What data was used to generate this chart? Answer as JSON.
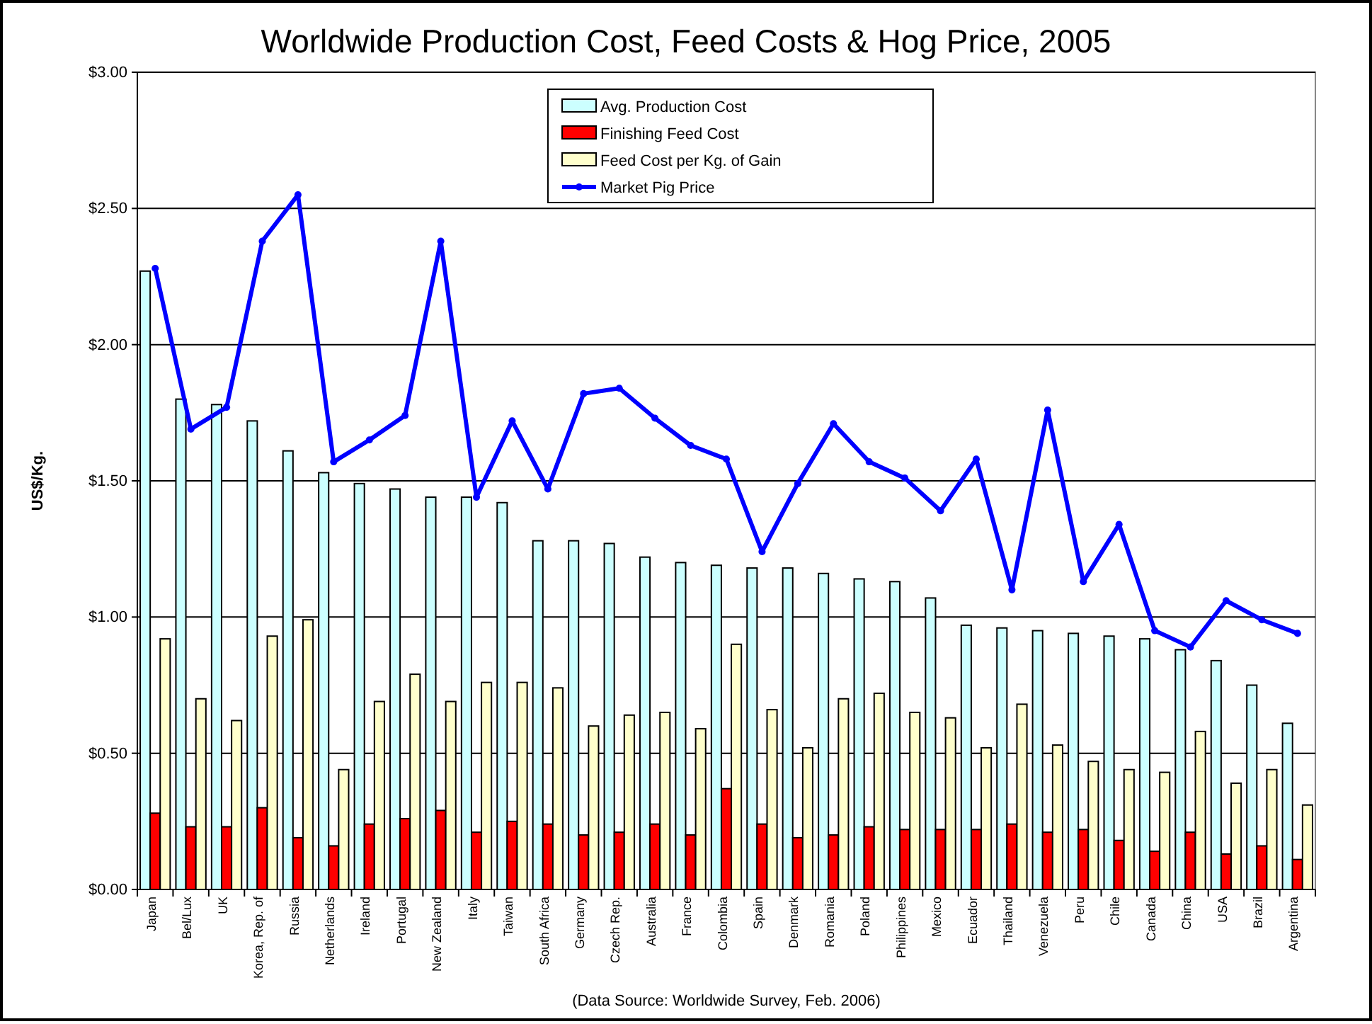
{
  "chart_data": {
    "type": "bar",
    "title": "Worldwide Production Cost, Feed Costs & Hog Price, 2005",
    "ylabel": "US$/Kg.",
    "categories": [
      "Japan",
      "Bel/Lux",
      "UK",
      "Korea, Rep. of",
      "Russia",
      "Netherlands",
      "Ireland",
      "Portugal",
      "New Zealand",
      "Italy",
      "Taiwan",
      "South Africa",
      "Germany",
      "Czech Rep.",
      "Australia",
      "France",
      "Colombia",
      "Spain",
      "Denmark",
      "Romania",
      "Poland",
      "Philippines",
      "Mexico",
      "Ecuador",
      "Thailand",
      "Venezuela",
      "Peru",
      "Chile",
      "Canada",
      "China",
      "USA",
      "Brazil",
      "Argentina"
    ],
    "series": [
      {
        "name": "Avg. Production Cost",
        "color": "#ccffff",
        "values": [
          2.27,
          1.8,
          1.78,
          1.72,
          1.61,
          1.53,
          1.49,
          1.47,
          1.44,
          1.44,
          1.42,
          1.28,
          1.28,
          1.27,
          1.22,
          1.2,
          1.19,
          1.18,
          1.18,
          1.16,
          1.14,
          1.13,
          1.07,
          0.97,
          0.96,
          0.95,
          0.94,
          0.93,
          0.92,
          0.88,
          0.84,
          0.75,
          0.61
        ]
      },
      {
        "name": "Finishing Feed Cost",
        "color": "#ff0000",
        "values": [
          0.28,
          0.23,
          0.23,
          0.3,
          0.19,
          0.16,
          0.24,
          0.26,
          0.29,
          0.21,
          0.25,
          0.24,
          0.2,
          0.21,
          0.24,
          0.2,
          0.37,
          0.24,
          0.19,
          0.2,
          0.23,
          0.22,
          0.22,
          0.22,
          0.24,
          0.21,
          0.22,
          0.18,
          0.14,
          0.21,
          0.13,
          0.16,
          0.11
        ]
      },
      {
        "name": "Feed Cost per Kg. of Gain",
        "color": "#ffffcc",
        "values": [
          0.92,
          0.7,
          0.62,
          0.93,
          0.99,
          0.44,
          0.69,
          0.79,
          0.69,
          0.76,
          0.76,
          0.74,
          0.6,
          0.64,
          0.65,
          0.59,
          0.9,
          0.66,
          0.52,
          0.7,
          0.72,
          0.65,
          0.63,
          0.52,
          0.68,
          0.53,
          0.47,
          0.44,
          0.43,
          0.58,
          0.39,
          0.44,
          0.31
        ]
      },
      {
        "name": "Market Pig Price",
        "type": "line",
        "color": "#0000ff",
        "marker": "circle",
        "values": [
          2.28,
          1.69,
          1.77,
          2.38,
          2.55,
          1.57,
          1.65,
          1.74,
          2.38,
          1.44,
          1.72,
          1.47,
          1.82,
          1.84,
          1.73,
          1.63,
          1.58,
          1.24,
          1.49,
          1.71,
          1.57,
          1.51,
          1.39,
          1.58,
          1.1,
          1.76,
          1.13,
          1.34,
          0.95,
          0.89,
          1.06,
          0.99,
          0.94
        ]
      }
    ],
    "ylim": [
      0,
      3
    ],
    "yticks": [
      {
        "value": 0,
        "label": "$0.00"
      },
      {
        "value": 0.5,
        "label": "$0.50"
      },
      {
        "value": 1,
        "label": "$1.00"
      },
      {
        "value": 1.5,
        "label": "$1.50"
      },
      {
        "value": 2,
        "label": "$2.00"
      },
      {
        "value": 2.5,
        "label": "$2.50"
      },
      {
        "value": 3,
        "label": "$3.00"
      }
    ],
    "grid": "y",
    "legend": "top",
    "line_style": "solid",
    "annotations": [
      "(Data Source: Worldwide Survey, Feb. 2006)"
    ]
  }
}
